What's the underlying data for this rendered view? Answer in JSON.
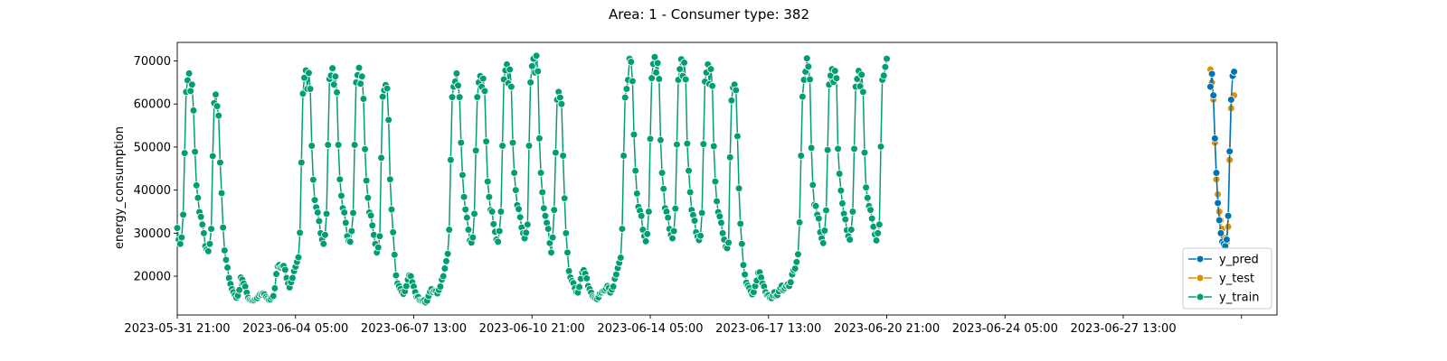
{
  "chart_data": {
    "type": "line",
    "title": "Area: 1 - Consumer type: 382",
    "xlabel": "",
    "ylabel": "energy_consumption",
    "x_axis": "datetime",
    "xlim": [
      "2023-05-31T21:00",
      "2023-07-01T21:00"
    ],
    "ylim": [
      11000,
      74300
    ],
    "y_ticks": [
      20000,
      30000,
      40000,
      50000,
      60000,
      70000
    ],
    "y_tick_labels": [
      "20000",
      "30000",
      "40000",
      "50000",
      "60000",
      "70000"
    ],
    "x_ticks": [
      "2023-05-31T21:00",
      "2023-06-04T05:00",
      "2023-06-07T13:00",
      "2023-06-10T21:00",
      "2023-06-14T05:00",
      "2023-06-17T13:00",
      "2023-06-20T21:00",
      "2023-06-24T05:00",
      "2023-06-27T13:00",
      "2023-06-30T21:00"
    ],
    "x_tick_labels": [
      "2023-05-31 21:00",
      "2023-06-04 05:00",
      "2023-06-07 13:00",
      "2023-06-10 21:00",
      "2023-06-14 05:00",
      "2023-06-17 13:00",
      "2023-06-20 21:00",
      "2023-06-24 05:00",
      "2023-06-27 13:00",
      ""
    ],
    "grid": false,
    "legend_position": "lower-right",
    "series": [
      {
        "name": "y_pred",
        "color": "#0173b2",
        "start": "2023-06-30T00:00",
        "step_hours": 1,
        "values": [
          64000,
          67000,
          62000,
          52000,
          44000,
          37000,
          33000,
          30000,
          28000,
          27500,
          27000,
          28500,
          34000,
          49000,
          61000,
          66500,
          67500
        ]
      },
      {
        "name": "y_test",
        "color": "#de8f05",
        "start": "2023-06-30T00:00",
        "step_hours": 1,
        "values": [
          68000,
          65000,
          61000,
          51000,
          42500,
          39000,
          35000,
          33000,
          31000,
          29000,
          28000,
          27800,
          31500,
          47000,
          59000,
          61500,
          62000
        ]
      },
      {
        "name": "y_train",
        "color": "#029e73",
        "start": "2023-05-31T21:00",
        "step_hours": 1,
        "values": [
          31200,
          28500,
          27500,
          29000,
          34300,
          48600,
          62800,
          65500,
          67100,
          63000,
          64500,
          58500,
          48900,
          41100,
          38200,
          34900,
          33800,
          32000,
          30000,
          27000,
          26200,
          25800,
          27500,
          31000,
          47900,
          60200,
          62200,
          59500,
          57300,
          46400,
          39300,
          31300,
          26000,
          23800,
          22000,
          19600,
          18200,
          17000,
          16300,
          15600,
          15000,
          15500,
          16800,
          19700,
          19200,
          18300,
          17600,
          16200,
          15000,
          14500,
          14400,
          14300,
          14400,
          14700,
          14900,
          15400,
          15800,
          15700,
          16000,
          15800,
          15200,
          14800,
          14500,
          14600,
          15100,
          15400,
          17200,
          20500,
          22300,
          22600,
          22000,
          22300,
          22400,
          21500,
          19600,
          18300,
          17400,
          18600,
          19600,
          21200,
          22200,
          23300,
          24400,
          30100,
          46400,
          62400,
          66100,
          67800,
          63500,
          67200,
          63500,
          50300,
          42400,
          37700,
          36000,
          34800,
          32800,
          30000,
          28500,
          27500,
          29600,
          34500,
          50500,
          65800,
          66600,
          68300,
          64500,
          66400,
          62700,
          50500,
          42500,
          38700,
          35800,
          34800,
          32400,
          29300,
          28200,
          28000,
          30500,
          34700,
          50500,
          65000,
          66700,
          68400,
          64700,
          66400,
          61200,
          49500,
          42200,
          38200,
          34800,
          34100,
          31800,
          29600,
          27500,
          25500,
          26700,
          29300,
          47500,
          61700,
          63200,
          64400,
          63600,
          56300,
          42500,
          35500,
          30200,
          25000,
          20200,
          18300,
          17700,
          17000,
          16300,
          15900,
          16500,
          17700,
          19200,
          20200,
          20000,
          18600,
          17600,
          16300,
          15200,
          15200,
          14400,
          14300,
          14300,
          14400,
          13900,
          14300,
          15400,
          16400,
          17000,
          16300,
          16600,
          16500,
          16000,
          16800,
          17600,
          19200,
          20000,
          21800,
          23500,
          25200,
          30800,
          47000,
          61600,
          64000,
          65200,
          67100,
          64300,
          61600,
          51000,
          43500,
          38400,
          35500,
          33600,
          30800,
          28300,
          27800,
          29000,
          34500,
          49200,
          61600,
          65000,
          66500,
          64000,
          65900,
          63000,
          51300,
          42000,
          38400,
          35400,
          35000,
          32100,
          30300,
          28500,
          28000,
          30500,
          35000,
          50300,
          65700,
          67800,
          69200,
          64800,
          68000,
          64000,
          51000,
          44000,
          40000,
          36500,
          35600,
          33700,
          31300,
          30000,
          28800,
          30100,
          32000,
          50300,
          65000,
          68800,
          70500,
          67300,
          71200,
          67600,
          52000,
          44000,
          39500,
          35800,
          34000,
          32400,
          31000,
          27700,
          25500,
          29000,
          35400,
          48700,
          61000,
          62800,
          61500,
          60000,
          48000,
          38100,
          30000,
          25500,
          21200,
          19700,
          18900,
          18400,
          17200,
          16300,
          16200,
          17500,
          19400,
          20900,
          21400,
          20600,
          19500,
          17700,
          17000,
          16200,
          15300,
          15000,
          14800,
          14700,
          15100,
          16000,
          16200,
          16600,
          16700,
          17100,
          17700,
          17300,
          16200,
          16900,
          17600,
          19400,
          20400,
          21900,
          23100,
          24300,
          31000,
          48000,
          61500,
          63500,
          65600,
          70500,
          69800,
          65300,
          52900,
          44500,
          39200,
          36100,
          35200,
          34000,
          30800,
          29300,
          28100,
          29800,
          35000,
          51900,
          66000,
          69300,
          70900,
          67300,
          69500,
          65800,
          51600,
          44000,
          40300,
          35800,
          35000,
          33600,
          31000,
          29600,
          28800,
          30500,
          35700,
          50600,
          65600,
          68100,
          70400,
          66500,
          69600,
          65700,
          50800,
          44500,
          39500,
          35400,
          34200,
          32900,
          30200,
          29200,
          28400,
          29400,
          34700,
          50700,
          65200,
          67300,
          69200,
          64600,
          68100,
          64200,
          50200,
          42000,
          37400,
          34900,
          33900,
          32400,
          30000,
          28500,
          26800,
          26500,
          27800,
          47600,
          60800,
          63800,
          64500,
          63200,
          52500,
          40400,
          32200,
          27500,
          22600,
          20400,
          18500,
          17800,
          17300,
          16500,
          15800,
          16300,
          17700,
          19000,
          20800,
          20900,
          19700,
          18300,
          17600,
          16300,
          15600,
          15600,
          15000,
          14900,
          15500,
          16300,
          15400,
          15600,
          16500,
          17300,
          17800,
          16800,
          17200,
          17700,
          18100,
          17700,
          18600,
          20400,
          21400,
          21800,
          23300,
          25100,
          32500,
          48000,
          61700,
          65600,
          67500,
          70600,
          68700,
          65700,
          49800,
          41200,
          36600,
          36300,
          34300,
          33400,
          30200,
          28800,
          27700,
          30600,
          35300,
          49300,
          64500,
          66600,
          68100,
          65100,
          67700,
          66000,
          49600,
          43800,
          39900,
          36900,
          34500,
          33200,
          30700,
          29300,
          28500,
          30800,
          35000,
          49600,
          64000,
          65800,
          67700,
          64100,
          66800,
          62800,
          48700,
          40600,
          38200,
          36300,
          35400,
          33400,
          31500,
          29700,
          28300,
          30000,
          32000,
          50100,
          65600,
          66600,
          68600,
          70500
        ]
      }
    ]
  }
}
